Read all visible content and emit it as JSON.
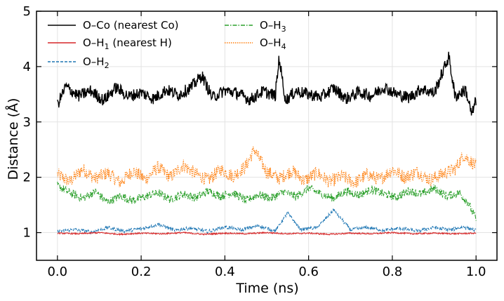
{
  "chart_data": {
    "type": "line",
    "title": "",
    "xlabel": "Time (ns)",
    "ylabel": "Distance (Å)",
    "xlim": [
      -0.05,
      1.05
    ],
    "ylim": [
      0.5,
      5
    ],
    "xticks": [
      "0.0",
      "0.2",
      "0.4",
      "0.6",
      "0.8",
      "1.0"
    ],
    "yticks": [
      "1",
      "2",
      "3",
      "4",
      "5"
    ],
    "grid": true,
    "legend_position": "top-left, two columns",
    "series": [
      {
        "name": "O–Co (nearest Co)",
        "legend_main": "O–Co (nearest Co)",
        "legend_sub": "",
        "legend_suffix": "",
        "color": "#000000",
        "style": "solid",
        "points": [
          [
            0.0,
            3.31
          ],
          [
            0.02,
            3.64
          ],
          [
            0.05,
            3.47
          ],
          [
            0.08,
            3.56
          ],
          [
            0.11,
            3.39
          ],
          [
            0.14,
            3.62
          ],
          [
            0.17,
            3.46
          ],
          [
            0.2,
            3.53
          ],
          [
            0.23,
            3.42
          ],
          [
            0.26,
            3.58
          ],
          [
            0.29,
            3.49
          ],
          [
            0.32,
            3.63
          ],
          [
            0.345,
            3.84
          ],
          [
            0.37,
            3.44
          ],
          [
            0.4,
            3.57
          ],
          [
            0.43,
            3.52
          ],
          [
            0.46,
            3.4
          ],
          [
            0.49,
            3.55
          ],
          [
            0.52,
            3.48
          ],
          [
            0.53,
            4.13
          ],
          [
            0.545,
            3.39
          ],
          [
            0.57,
            3.56
          ],
          [
            0.6,
            3.5
          ],
          [
            0.63,
            3.45
          ],
          [
            0.66,
            3.61
          ],
          [
            0.69,
            3.42
          ],
          [
            0.72,
            3.54
          ],
          [
            0.75,
            3.47
          ],
          [
            0.78,
            3.63
          ],
          [
            0.81,
            3.5
          ],
          [
            0.84,
            3.44
          ],
          [
            0.87,
            3.6
          ],
          [
            0.9,
            3.52
          ],
          [
            0.935,
            4.18
          ],
          [
            0.95,
            3.46
          ],
          [
            0.975,
            3.58
          ],
          [
            0.99,
            3.13
          ],
          [
            1.0,
            3.4
          ]
        ]
      },
      {
        "name": "O–H1 (nearest H)",
        "legend_main": "O–H",
        "legend_sub": "1",
        "legend_suffix": " (nearest H)",
        "color": "#d62728",
        "style": "solid",
        "points": [
          [
            0.0,
            0.99
          ],
          [
            0.05,
            0.98
          ],
          [
            0.1,
            1.0
          ],
          [
            0.15,
            0.97
          ],
          [
            0.2,
            0.99
          ],
          [
            0.25,
            0.98
          ],
          [
            0.3,
            1.0
          ],
          [
            0.35,
            0.97
          ],
          [
            0.4,
            0.99
          ],
          [
            0.45,
            0.98
          ],
          [
            0.5,
            1.0
          ],
          [
            0.55,
            0.98
          ],
          [
            0.6,
            0.99
          ],
          [
            0.65,
            0.97
          ],
          [
            0.7,
            0.99
          ],
          [
            0.75,
            0.98
          ],
          [
            0.8,
            1.0
          ],
          [
            0.85,
            0.98
          ],
          [
            0.9,
            0.99
          ],
          [
            0.95,
            0.98
          ],
          [
            1.0,
            0.99
          ]
        ]
      },
      {
        "name": "O–H2",
        "legend_main": "O–H",
        "legend_sub": "2",
        "legend_suffix": "",
        "color": "#1f77b4",
        "style": "dashed",
        "points": [
          [
            0.0,
            1.02
          ],
          [
            0.04,
            1.06
          ],
          [
            0.08,
            1.01
          ],
          [
            0.12,
            1.09
          ],
          [
            0.16,
            1.03
          ],
          [
            0.2,
            1.07
          ],
          [
            0.24,
            1.15
          ],
          [
            0.28,
            1.04
          ],
          [
            0.32,
            1.08
          ],
          [
            0.36,
            1.02
          ],
          [
            0.4,
            1.1
          ],
          [
            0.44,
            1.05
          ],
          [
            0.48,
            1.13
          ],
          [
            0.52,
            1.03
          ],
          [
            0.55,
            1.36
          ],
          [
            0.58,
            1.06
          ],
          [
            0.62,
            1.09
          ],
          [
            0.66,
            1.41
          ],
          [
            0.7,
            1.05
          ],
          [
            0.74,
            1.1
          ],
          [
            0.78,
            1.04
          ],
          [
            0.82,
            1.08
          ],
          [
            0.86,
            1.03
          ],
          [
            0.9,
            1.09
          ],
          [
            0.94,
            1.05
          ],
          [
            0.97,
            1.1
          ],
          [
            1.0,
            1.04
          ]
        ]
      },
      {
        "name": "O–H3",
        "legend_main": "O–H",
        "legend_sub": "3",
        "legend_suffix": "",
        "color": "#2ca02c",
        "style": "dashdot",
        "points": [
          [
            0.0,
            1.85
          ],
          [
            0.03,
            1.72
          ],
          [
            0.06,
            1.62
          ],
          [
            0.09,
            1.74
          ],
          [
            0.12,
            1.55
          ],
          [
            0.15,
            1.66
          ],
          [
            0.18,
            1.58
          ],
          [
            0.21,
            1.65
          ],
          [
            0.24,
            1.72
          ],
          [
            0.27,
            1.6
          ],
          [
            0.3,
            1.7
          ],
          [
            0.33,
            1.63
          ],
          [
            0.36,
            1.75
          ],
          [
            0.39,
            1.66
          ],
          [
            0.42,
            1.72
          ],
          [
            0.45,
            1.58
          ],
          [
            0.48,
            1.69
          ],
          [
            0.51,
            1.62
          ],
          [
            0.54,
            1.74
          ],
          [
            0.57,
            1.65
          ],
          [
            0.6,
            1.8
          ],
          [
            0.63,
            1.7
          ],
          [
            0.66,
            1.62
          ],
          [
            0.69,
            1.75
          ],
          [
            0.72,
            1.68
          ],
          [
            0.75,
            1.78
          ],
          [
            0.78,
            1.7
          ],
          [
            0.81,
            1.64
          ],
          [
            0.84,
            1.76
          ],
          [
            0.87,
            1.69
          ],
          [
            0.9,
            1.8
          ],
          [
            0.93,
            1.66
          ],
          [
            0.96,
            1.72
          ],
          [
            0.98,
            1.55
          ],
          [
            1.0,
            1.25
          ]
        ]
      },
      {
        "name": "O–H4",
        "legend_main": "O–H",
        "legend_sub": "4",
        "legend_suffix": "",
        "color": "#ff7f0e",
        "style": "dotted",
        "points": [
          [
            0.0,
            2.05
          ],
          [
            0.03,
            1.92
          ],
          [
            0.06,
            2.15
          ],
          [
            0.09,
            1.98
          ],
          [
            0.12,
            2.08
          ],
          [
            0.15,
            1.9
          ],
          [
            0.18,
            2.12
          ],
          [
            0.21,
            1.96
          ],
          [
            0.24,
            2.18
          ],
          [
            0.27,
            2.0
          ],
          [
            0.3,
            2.22
          ],
          [
            0.33,
            2.06
          ],
          [
            0.36,
            1.95
          ],
          [
            0.39,
            2.14
          ],
          [
            0.42,
            2.02
          ],
          [
            0.45,
            2.2
          ],
          [
            0.47,
            2.5
          ],
          [
            0.5,
            2.1
          ],
          [
            0.53,
            1.98
          ],
          [
            0.56,
            2.12
          ],
          [
            0.59,
            1.94
          ],
          [
            0.62,
            2.08
          ],
          [
            0.65,
            1.92
          ],
          [
            0.68,
            2.02
          ],
          [
            0.71,
            1.9
          ],
          [
            0.74,
            2.05
          ],
          [
            0.77,
            1.96
          ],
          [
            0.8,
            2.14
          ],
          [
            0.83,
            2.0
          ],
          [
            0.86,
            2.1
          ],
          [
            0.89,
            1.95
          ],
          [
            0.92,
            2.06
          ],
          [
            0.95,
            2.15
          ],
          [
            0.97,
            2.4
          ],
          [
            1.0,
            2.2
          ]
        ]
      }
    ]
  }
}
